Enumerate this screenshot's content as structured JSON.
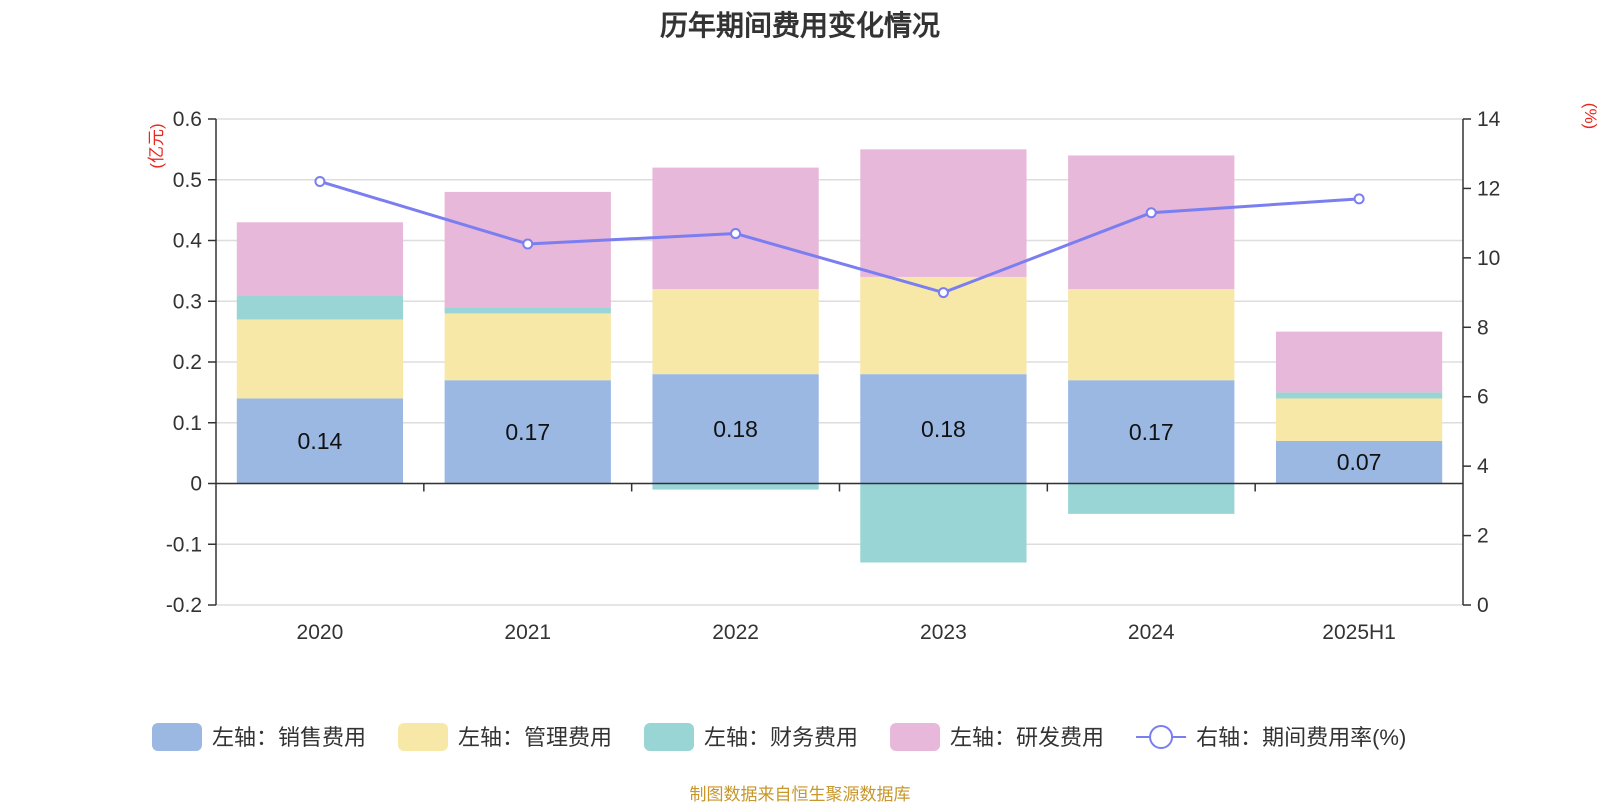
{
  "title": "历年期间费用变化情况",
  "source": "制图数据来自恒生聚源数据库",
  "chart_data": {
    "type": "bar",
    "stacked": true,
    "title": "历年期间费用变化情况",
    "categories": [
      "2020",
      "2021",
      "2022",
      "2023",
      "2024",
      "2025H1"
    ],
    "left_axis": {
      "unit": "(亿元)",
      "ylim": [
        -0.2,
        0.6
      ],
      "ticks": [
        -0.2,
        -0.1,
        0,
        0.1,
        0.2,
        0.3,
        0.4,
        0.5,
        0.6
      ],
      "tick_labels": [
        "-0.2",
        "-0.1",
        "0",
        "0.1",
        "0.2",
        "0.3",
        "0.4",
        "0.5",
        "0.6"
      ]
    },
    "right_axis": {
      "unit": "(%)",
      "ylim": [
        0,
        14
      ],
      "ticks": [
        0,
        2,
        4,
        6,
        8,
        10,
        12,
        14
      ],
      "tick_labels": [
        "0",
        "2",
        "4",
        "6",
        "8",
        "10",
        "12",
        "14"
      ]
    },
    "series": [
      {
        "name": "左轴：销售费用",
        "type": "bar",
        "axis": "left",
        "color": "#9ab8e2",
        "values": [
          0.14,
          0.17,
          0.18,
          0.18,
          0.17,
          0.07
        ],
        "data_labels": [
          "0.14",
          "0.17",
          "0.18",
          "0.18",
          "0.17",
          "0.07"
        ]
      },
      {
        "name": "左轴：管理费用",
        "type": "bar",
        "axis": "left",
        "color": "#f7e8a8",
        "values": [
          0.13,
          0.11,
          0.14,
          0.16,
          0.15,
          0.07
        ]
      },
      {
        "name": "左轴：财务费用",
        "type": "bar",
        "axis": "left",
        "color": "#98d5d4",
        "values": [
          0.04,
          0.01,
          -0.01,
          -0.13,
          -0.05,
          0.01
        ]
      },
      {
        "name": "左轴：研发费用",
        "type": "bar",
        "axis": "left",
        "color": "#e7b8d9",
        "values": [
          0.12,
          0.19,
          0.2,
          0.21,
          0.22,
          0.1
        ]
      },
      {
        "name": "右轴：期间费用率(%)",
        "type": "line",
        "axis": "right",
        "color": "#7a7ef0",
        "values": [
          12.2,
          10.4,
          10.7,
          9.0,
          11.3,
          11.7
        ]
      }
    ],
    "grid": true,
    "legend_position": "bottom"
  }
}
